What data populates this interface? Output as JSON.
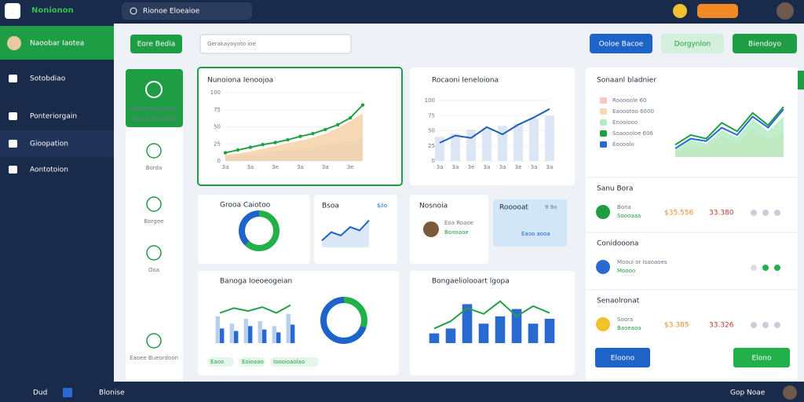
{
  "topbar": {
    "logo": "Nonionon",
    "search": "Rionoe Eloeaioe"
  },
  "sidebar": {
    "user": "Naoobar Iaotea",
    "items": [
      "Sotobdiao",
      "Ponteriorgain",
      "Gioopation",
      "Aontotoion"
    ]
  },
  "toolbar": {
    "button": "Eore Bedia",
    "search": "Gerakayoyoto ioe",
    "actions": [
      "Ooloe Bacoe",
      "Dorgynlon",
      "Biendoyo"
    ]
  },
  "subnav": [
    "Niooo Bacaolaos",
    "Eaoo Eooreodan",
    "Borda",
    "Borgee",
    "Ooa",
    "Eaoee Bueordoon"
  ],
  "cards": {
    "small_line": {
      "title": "Bsoa",
      "badge": "$/io"
    },
    "profile": {
      "title": "Nosnoia",
      "name": "Eoa Roaoe",
      "sub": "Bonoaoe"
    },
    "promo": {
      "title": "Rooooat",
      "badge": "9 9o",
      "sub": "Eaoo aooa"
    },
    "footer_tags": [
      "Eaoo",
      "Eoioaao",
      "Ioooioaolao"
    ]
  },
  "right_panel": {
    "rows": [
      {
        "title": "Sanu Bora",
        "name": "Bona",
        "sub": "Soooaaa",
        "amount": "$35.556",
        "total": "33.380"
      },
      {
        "title": "Conidooona",
        "name": "Mooul or Isaoaoes",
        "sub": "Moooo"
      },
      {
        "title": "Senaolronat",
        "name": "Soora",
        "sub": "Baoeaoa",
        "amount": "$3.385",
        "total": "33.326"
      }
    ],
    "buttons": [
      "Eloono",
      "Elono"
    ]
  },
  "bottombar": {
    "left": [
      "Dud",
      "Blonise"
    ],
    "right": "Gop Noae"
  },
  "chart_data": [
    {
      "type": "area",
      "title": "Nunoiona Ienoojoa",
      "ylim": [
        0,
        100
      ],
      "yticks": [
        0,
        25,
        50,
        75,
        100
      ],
      "categories": [
        "3a",
        null,
        "3a",
        null,
        "3e",
        null,
        "3a",
        null,
        "3a",
        null,
        "3e",
        null
      ],
      "series": [
        {
          "type": "area",
          "color": "#c9d9f2",
          "values": [
            6,
            8,
            10,
            12,
            14,
            16,
            18,
            21,
            23,
            26,
            29,
            32
          ]
        },
        {
          "type": "area",
          "color": "#f6d2a8",
          "values": [
            9,
            11,
            14,
            18,
            22,
            26,
            30,
            34,
            40,
            48,
            58,
            70
          ]
        },
        {
          "type": "line",
          "color": "#23a047",
          "values": [
            12,
            16,
            20,
            24,
            27,
            31,
            36,
            40,
            46,
            53,
            63,
            82
          ]
        }
      ]
    },
    {
      "type": "combo",
      "title": "Rocaoni Ieneloiona",
      "ylim": [
        0,
        100
      ],
      "yticks": [
        0,
        25,
        50,
        75,
        100
      ],
      "categories": [
        "3a",
        "3a",
        "3e",
        "3a",
        "3a",
        "3e",
        "3a",
        "3a"
      ],
      "series": [
        {
          "type": "bar",
          "color": "#dce6f4",
          "values": [
            40,
            45,
            52,
            55,
            58,
            62,
            70,
            75
          ]
        },
        {
          "type": "line",
          "color": "#1f5fb8",
          "values": [
            30,
            42,
            38,
            56,
            44,
            60,
            72,
            86
          ]
        }
      ]
    },
    {
      "type": "pie",
      "title": "Grooa Caiotoo",
      "colors": [
        "#22b04b",
        "#1e63c8"
      ],
      "values": [
        62,
        38
      ]
    },
    {
      "type": "combo",
      "ylim": [
        0,
        100
      ],
      "series": [
        {
          "type": "area",
          "color": "#d6e4f7",
          "values": [
            20,
            45,
            35,
            60,
            50,
            80
          ]
        },
        {
          "type": "line",
          "color": "#1e63c8",
          "values": [
            20,
            45,
            35,
            60,
            50,
            80
          ]
        }
      ]
    },
    {
      "type": "combo",
      "title": "Banoga Ioeoeogeian",
      "ylim": [
        0,
        100
      ],
      "series": [
        {
          "type": "bar",
          "color": "#b9cfee",
          "values": [
            55,
            40,
            50,
            45,
            35,
            60
          ]
        },
        {
          "type": "bar",
          "color": "#2a6ad0",
          "values": [
            30,
            25,
            35,
            28,
            22,
            38
          ]
        },
        {
          "type": "line",
          "color": "#23a047",
          "values": [
            62,
            72,
            66,
            74,
            62,
            78
          ]
        }
      ]
    },
    {
      "type": "pie",
      "colors": [
        "#22b04b",
        "#1e63c8"
      ],
      "values": [
        30,
        70
      ]
    },
    {
      "type": "combo",
      "title": "Bongaeliolooart lgopa",
      "ylim": [
        0,
        100
      ],
      "series": [
        {
          "type": "bar",
          "color": "#2a6ad0",
          "values": [
            20,
            30,
            80,
            40,
            55,
            70,
            40,
            50
          ]
        },
        {
          "type": "line",
          "color": "#23a047",
          "values": [
            30,
            45,
            72,
            60,
            86,
            55,
            76,
            62
          ]
        }
      ]
    },
    {
      "type": "area",
      "title": "Sonaanl bladnier",
      "ylim": [
        0,
        100
      ],
      "series": [
        {
          "type": "area",
          "name": "Rooooole 60",
          "color": "#f6c8c0",
          "values": [
            5,
            15,
            12,
            28,
            18,
            38,
            24,
            34
          ]
        },
        {
          "type": "area",
          "name": "Eaoootoo 6000",
          "color": "#f3d9b4",
          "values": [
            8,
            20,
            16,
            34,
            24,
            46,
            30,
            42
          ]
        },
        {
          "type": "area",
          "name": "Enooiooo",
          "color": "#b6ecc4",
          "values": [
            12,
            28,
            22,
            44,
            32,
            62,
            42,
            66
          ]
        },
        {
          "type": "line",
          "name": "Soaoooloe 606",
          "color": "#1f9d45",
          "values": [
            20,
            36,
            30,
            56,
            42,
            72,
            52,
            82
          ]
        },
        {
          "type": "line",
          "name": "Eoooolo",
          "color": "#2a6ad0",
          "values": [
            14,
            30,
            26,
            48,
            36,
            66,
            48,
            78
          ]
        }
      ]
    }
  ]
}
